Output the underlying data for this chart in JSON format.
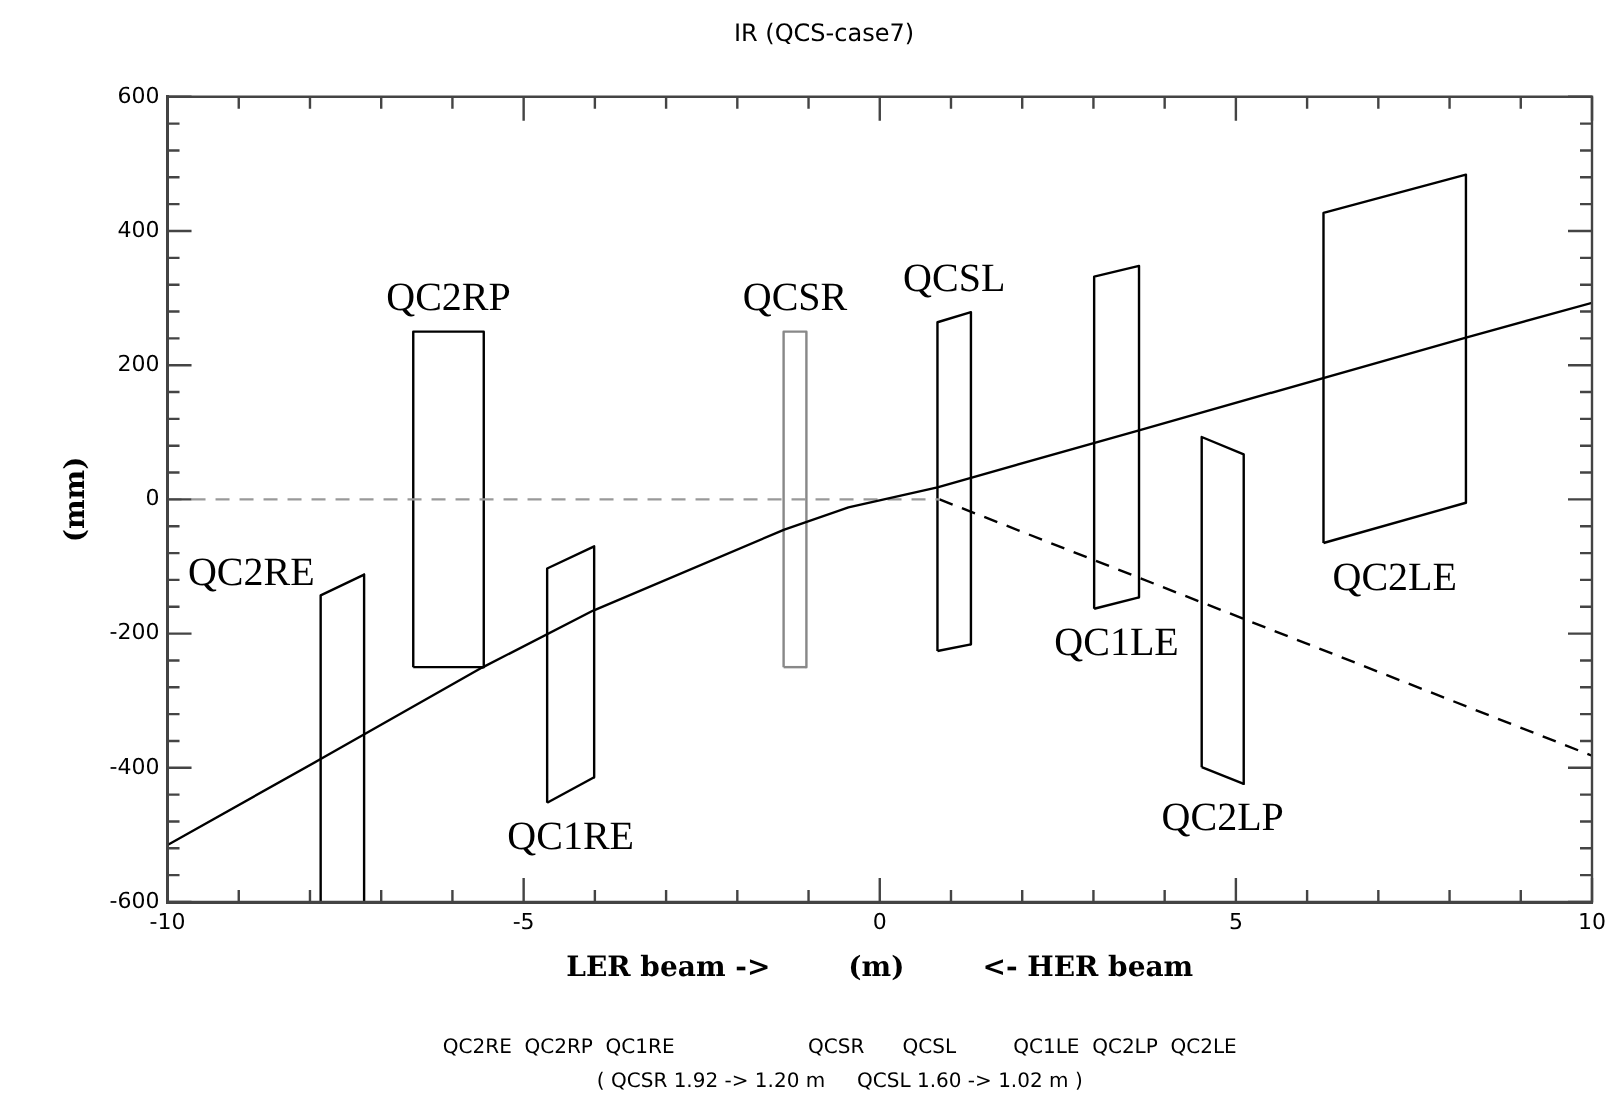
{
  "chart_data": {
    "type": "line",
    "title": "IR (QCS-case7)",
    "xlabel": "LER beam ->        (m)        <- HER beam",
    "ylabel": "(mm)",
    "xlim": [
      -10,
      10
    ],
    "ylim": [
      -600,
      600
    ],
    "xticks": [
      -10,
      {
        "value": -9,
        "label": null
      },
      {
        "value": -8,
        "label": null
      },
      {
        "value": -7,
        "label": null
      },
      {
        "value": -6,
        "label": null
      },
      -5,
      {
        "value": -4,
        "label": null
      },
      {
        "value": -3,
        "label": null
      },
      {
        "value": -2,
        "label": null
      },
      {
        "value": -1,
        "label": null
      },
      0,
      {
        "value": 1,
        "label": null
      },
      {
        "value": 2,
        "label": null
      },
      {
        "value": 3,
        "label": null
      },
      {
        "value": 4,
        "label": null
      },
      5,
      {
        "value": 6,
        "label": null
      },
      {
        "value": 7,
        "label": null
      },
      {
        "value": 8,
        "label": null
      },
      {
        "value": 9,
        "label": null
      },
      10
    ],
    "yticks": [
      -600,
      {
        "value": -560,
        "label": null
      },
      {
        "value": -520,
        "label": null
      },
      {
        "value": -480,
        "label": null
      },
      {
        "value": -440,
        "label": null
      },
      -400,
      {
        "value": -360,
        "label": null
      },
      {
        "value": -320,
        "label": null
      },
      {
        "value": -280,
        "label": null
      },
      {
        "value": -240,
        "label": null
      },
      -200,
      {
        "value": -160,
        "label": null
      },
      {
        "value": -120,
        "label": null
      },
      {
        "value": -80,
        "label": null
      },
      {
        "value": -40,
        "label": null
      },
      0,
      {
        "value": 40,
        "label": null
      },
      {
        "value": 80,
        "label": null
      },
      {
        "value": 120,
        "label": null
      },
      {
        "value": 160,
        "label": null
      },
      200,
      {
        "value": 240,
        "label": null
      },
      {
        "value": 280,
        "label": null
      },
      {
        "value": 320,
        "label": null
      },
      {
        "value": 360,
        "label": null
      },
      400,
      {
        "value": 440,
        "label": null
      },
      {
        "value": 480,
        "label": null
      },
      {
        "value": 520,
        "label": null
      },
      {
        "value": 560,
        "label": null
      },
      600
    ],
    "grid": false,
    "legend": false,
    "marker": "none",
    "series": [
      {
        "color": "#000000",
        "line_style": "solid",
        "x": [
          -10,
          -7.85,
          -5.59,
          -4.03,
          -1.34,
          -0.44,
          0.81,
          3.64,
          8.23,
          10
        ],
        "values": [
          -515,
          -387,
          -251,
          -166,
          -45,
          -12,
          18,
          103,
          241,
          293
        ]
      },
      {
        "color": "#999999",
        "line_style": "dashed",
        "x": [
          -10,
          0.84
        ],
        "values": [
          0,
          0
        ]
      },
      {
        "color": "#000000",
        "line_style": "dashed",
        "x": [
          0.84,
          10
        ],
        "values": [
          0,
          -382
        ]
      },
      {
        "name": "QC2RE",
        "color": "#000000",
        "line_style": "solid",
        "x": [
          -7.85,
          -7.85,
          -7.24,
          -7.24
        ],
        "values": [
          -600,
          -143,
          -112,
          -600
        ]
      },
      {
        "name": "QC2RP",
        "color": "#000000",
        "line_style": "solid",
        "x": [
          -6.55,
          -6.55,
          -5.56,
          -5.56
        ],
        "values": [
          -250,
          250,
          250,
          -250
        ]
      },
      {
        "color": "#000000",
        "line_style": "solid",
        "x": [
          -6.55,
          -5.56
        ],
        "values": [
          -250,
          -250
        ]
      },
      {
        "name": "QC1RE",
        "color": "#000000",
        "line_style": "solid",
        "x": [
          -4.67,
          -4.67,
          -4.01,
          -4.01
        ],
        "values": [
          -452,
          -103,
          -70,
          -414
        ]
      },
      {
        "color": "#000000",
        "line_style": "solid",
        "x": [
          -4.67,
          -4.01
        ],
        "values": [
          -452,
          -414
        ]
      },
      {
        "name": "QCSR",
        "color": "#888888",
        "line_style": "solid",
        "x": [
          -1.35,
          -1.35,
          -1.03,
          -1.03
        ],
        "values": [
          -250,
          250,
          250,
          -250
        ]
      },
      {
        "color": "#888888",
        "line_style": "solid",
        "x": [
          -1.35,
          -1.03
        ],
        "values": [
          -250,
          -250
        ]
      },
      {
        "name": "QCSL",
        "color": "#000000",
        "line_style": "solid",
        "x": [
          0.81,
          0.81,
          1.28,
          1.28
        ],
        "values": [
          -226,
          264,
          279,
          -216
        ]
      },
      {
        "color": "#000000",
        "line_style": "solid",
        "x": [
          0.81,
          1.28
        ],
        "values": [
          -226,
          -216
        ]
      },
      {
        "name": "QC1LE",
        "color": "#000000",
        "line_style": "solid",
        "x": [
          3.01,
          3.01,
          3.64,
          3.64
        ],
        "values": [
          -163,
          332,
          348,
          -146
        ]
      },
      {
        "color": "#000000",
        "line_style": "solid",
        "x": [
          3.01,
          3.64
        ],
        "values": [
          -163,
          -146
        ]
      },
      {
        "name": "QC2LP",
        "color": "#000000",
        "line_style": "solid",
        "x": [
          4.52,
          4.52,
          5.11,
          5.11
        ],
        "values": [
          -399,
          93,
          67,
          -424
        ]
      },
      {
        "color": "#000000",
        "line_style": "solid",
        "x": [
          4.52,
          5.11
        ],
        "values": [
          -399,
          -424
        ]
      },
      {
        "name": "QC2LE",
        "color": "#000000",
        "line_style": "solid",
        "x": [
          6.23,
          6.23,
          8.23,
          8.23
        ],
        "values": [
          -65,
          427,
          484,
          -5
        ]
      },
      {
        "color": "#000000",
        "line_style": "solid",
        "x": [
          6.23,
          8.23
        ],
        "values": [
          -65,
          -5
        ]
      }
    ],
    "annotations": [
      "QC2RE  QC2RP  QC1RE                     QCSR      QCSL         QC1LE  QC2LP  QC2LE",
      "( QCSR 1.92 -> 1.20 m     QCSL 1.60 -> 1.02 m )"
    ]
  }
}
